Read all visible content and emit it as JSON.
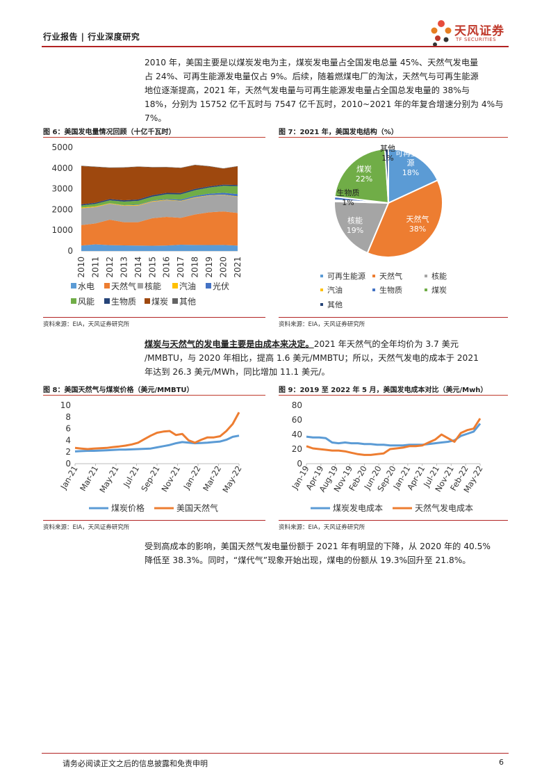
{
  "header": {
    "left": "行业报告 | 行业深度研究",
    "logo_cn": "天风证券",
    "logo_en": "TF SECURITIES"
  },
  "para1": "2010 年，美国主要是以煤炭发电为主，煤炭发电量占全国发电总量 45%、天然气发电量占 24%、可再生能源发电量仅占 9%。后续，随着燃煤电厂的淘汰，天然气与可再生能源地位逐渐提高，2021 年，天然气发电量与可再生能源发电量占全国总发电量的 38%与18%，分别为 15752 亿千瓦时与 7547 亿千瓦时，2010~2021 年的年复合增速分别为 4%与7%。",
  "para1_lines": [
    "2010 年，美国主要是以煤炭发电为主，煤炭发电量占全国发电总量 45%、天然气发电量",
    "占 24%、可再生能源发电量仅占 9%。后续，随着燃煤电厂的淘汰，天然气与可再生能源",
    "地位逐渐提高，2021 年，天然气发电量与可再生能源发电量占全国总发电量的 38%与",
    "18%，分别为 15752 亿千瓦时与 7547 亿千瓦时，2010~2021 年的年复合增速分别为 4%与",
    "7%。"
  ],
  "para2_bold": "煤炭与天然气的发电量主要是由成本来决定。",
  "para2_lines": [
    "2021 年天然气的全年均价为 3.7 美元",
    "/MMBTU，与 2020 年相比，提高 1.6 美元/MMBTU；所以，天然气发电的成本于 2021",
    "年达到 26.3 美元/MWh，同比增加 11.1 美元/。"
  ],
  "para3_lines": [
    "受到高成本的影响，美国天然气发电量份额于 2021 年有明显的下降，从 2020 年的 40.5%",
    "降低至 38.3%。同时，“煤代气”现象开始出现，煤电的份额从 19.3%回升至 21.8%。"
  ],
  "source_text": "资料来源：EIA，天风证券研究所",
  "footer": {
    "disclaimer": "请务必阅读正文之后的信息披露和免责申明",
    "page": "6"
  },
  "fig6": {
    "title": "图 6：美国发电量情况回顾（十亿千瓦时）"
  },
  "fig7": {
    "title": "图 7：2021 年，美国发电结构（%）"
  },
  "fig8": {
    "title": "图 8：美国天然气与煤炭价格（美元/MMBTU）"
  },
  "fig9": {
    "title": "图 9：2019 至 2022 年 5 月，美国发电成本对比（美元/Mwh）"
  },
  "chart_data": [
    {
      "id": "fig6",
      "type": "area",
      "stacked": true,
      "categories": [
        "2010",
        "2011",
        "2012",
        "2013",
        "2014",
        "2015",
        "2016",
        "2017",
        "2018",
        "2019",
        "2020",
        "2021"
      ],
      "ylim": [
        0,
        5000
      ],
      "yticks": [
        0,
        1000,
        2000,
        3000,
        4000,
        5000
      ],
      "legend_position": "bottom",
      "series": [
        {
          "name": "水电",
          "color": "#5b9bd5",
          "values": [
            260,
            320,
            280,
            270,
            260,
            250,
            265,
            300,
            290,
            285,
            290,
            260
          ]
        },
        {
          "name": "天然气",
          "color": "#ed7d31",
          "values": [
            990,
            1010,
            1230,
            1120,
            1130,
            1330,
            1380,
            1300,
            1470,
            1580,
            1620,
            1575
          ]
        },
        {
          "name": "核能",
          "color": "#a5a5a5",
          "values": [
            810,
            790,
            770,
            790,
            800,
            800,
            805,
            805,
            810,
            810,
            790,
            780
          ]
        },
        {
          "name": "汽油",
          "color": "#ffc000",
          "values": [
            37,
            30,
            23,
            27,
            30,
            28,
            24,
            21,
            25,
            18,
            17,
            19
          ]
        },
        {
          "name": "光伏",
          "color": "#4472c4",
          "values": [
            1,
            2,
            4,
            9,
            18,
            25,
            36,
            53,
            64,
            72,
            89,
            115
          ]
        },
        {
          "name": "风能",
          "color": "#70ad47",
          "values": [
            95,
            120,
            140,
            168,
            182,
            190,
            227,
            254,
            273,
            295,
            338,
            380
          ]
        },
        {
          "name": "生物质",
          "color": "#264478",
          "values": [
            56,
            56,
            58,
            60,
            63,
            64,
            63,
            62,
            62,
            57,
            56,
            54
          ]
        },
        {
          "name": "煤炭",
          "color": "#9e480e",
          "values": [
            1850,
            1730,
            1510,
            1580,
            1580,
            1350,
            1240,
            1210,
            1150,
            965,
            775,
            900
          ]
        },
        {
          "name": "其他",
          "color": "#636363",
          "values": [
            15,
            15,
            15,
            15,
            15,
            15,
            15,
            15,
            15,
            15,
            15,
            15
          ]
        }
      ]
    },
    {
      "id": "fig7",
      "type": "pie",
      "slices": [
        {
          "name": "可再生能源",
          "value": 18,
          "color": "#5b9bd5",
          "label": "可再生能\n源\n18%",
          "label_color": "#ffffff"
        },
        {
          "name": "天然气",
          "value": 38,
          "color": "#ed7d31",
          "label": "天然气\n38%",
          "label_color": "#ffffff"
        },
        {
          "name": "核能",
          "value": 19,
          "color": "#a5a5a5",
          "label": "核能\n19%",
          "label_color": "#ffffff"
        },
        {
          "name": "汽油",
          "value": 0.4,
          "color": "#ffc000",
          "label": "",
          "label_color": "#ffffff"
        },
        {
          "name": "生物质",
          "value": 1,
          "color": "#4472c4",
          "label": "生物质\n1%",
          "label_color": "#222222"
        },
        {
          "name": "煤炭",
          "value": 22,
          "color": "#70ad47",
          "label": "煤炭\n22%",
          "label_color": "#ffffff"
        },
        {
          "name": "其他",
          "value": 1,
          "color": "#264478",
          "label": "其他\n1%",
          "label_color": "#222222"
        }
      ],
      "legend_position": "bottom"
    },
    {
      "id": "fig8",
      "type": "line",
      "x_ticks": [
        "Jan-21",
        "Mar-21",
        "May-21",
        "Jul-21",
        "Sep-21",
        "Nov-21",
        "Jan-22",
        "Mar-22",
        "May-22"
      ],
      "ylim": [
        0,
        10
      ],
      "yticks": [
        0,
        2,
        4,
        6,
        8,
        10
      ],
      "legend_position": "bottom",
      "series": [
        {
          "name": "煤炭价格",
          "color": "#5b9bd5",
          "values": [
            2.1,
            2.15,
            2.2,
            2.2,
            2.25,
            2.3,
            2.35,
            2.4,
            2.4,
            2.45,
            2.5,
            2.55,
            2.6,
            2.8,
            3.0,
            3.2,
            3.5,
            3.7,
            3.6,
            3.5,
            3.55,
            3.6,
            3.7,
            3.8,
            4.1,
            4.6,
            4.8
          ]
        },
        {
          "name": "美国天然气",
          "color": "#ed7d31",
          "values": [
            2.7,
            2.6,
            2.5,
            2.6,
            2.65,
            2.7,
            2.85,
            2.95,
            3.1,
            3.3,
            3.6,
            4.2,
            4.8,
            5.3,
            5.5,
            5.6,
            4.9,
            5.1,
            4.0,
            3.6,
            4.1,
            4.5,
            4.5,
            4.7,
            5.6,
            6.8,
            8.8
          ]
        }
      ]
    },
    {
      "id": "fig9",
      "type": "line",
      "x_ticks": [
        "Jan-19",
        "Apr-19",
        "Aug-19",
        "Nov-19",
        "Feb-20",
        "Jun-20",
        "Sep-20",
        "Jan-21",
        "Apr-21",
        "Jul-21",
        "Nov-21",
        "Feb-22",
        "May-22"
      ],
      "ylim": [
        0,
        80
      ],
      "yticks": [
        0,
        20,
        40,
        60,
        80
      ],
      "legend_position": "bottom",
      "series": [
        {
          "name": "煤炭发电成本",
          "color": "#5b9bd5",
          "values": [
            37,
            36,
            36,
            35,
            29,
            28,
            29,
            28,
            28,
            27,
            27,
            26,
            26,
            25,
            25,
            25,
            26,
            26,
            26,
            27,
            28,
            29,
            30,
            32,
            38,
            41,
            44,
            55
          ]
        },
        {
          "name": "天然气发电成本",
          "color": "#ed7d31",
          "values": [
            24,
            21,
            20,
            19,
            18,
            18,
            17,
            15,
            13,
            12,
            12,
            13,
            14,
            20,
            21,
            22,
            24,
            24,
            25,
            29,
            33,
            40,
            35,
            30,
            42,
            46,
            48,
            62
          ]
        }
      ]
    }
  ]
}
